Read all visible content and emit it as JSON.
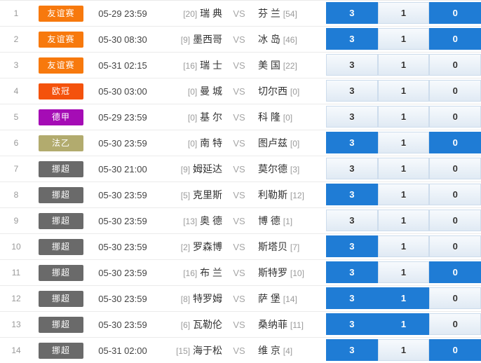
{
  "vs_label": "VS",
  "odds_options": [
    "3",
    "1",
    "0"
  ],
  "colors": {
    "selected_odd_bg": "#1f7cd5",
    "unselected_odd_bg": "#e8f0f8",
    "row_border": "#ebebeb"
  },
  "league_colors": {
    "友谊赛": "#f7790d",
    "欧冠": "#f4520c",
    "德甲": "#a50cb5",
    "法乙": "#b2ab6e",
    "挪超": "#6a6a6a"
  },
  "rows": [
    {
      "num": "1",
      "league": "友谊赛",
      "league_color": "#f7790d",
      "time": "05-29 23:59",
      "home_rank": "[20]",
      "home": "瑞 典",
      "away": "芬 兰",
      "away_rank": "[54]",
      "odds": [
        {
          "label": "3",
          "selected": true
        },
        {
          "label": "1",
          "selected": false
        },
        {
          "label": "0",
          "selected": true
        }
      ]
    },
    {
      "num": "2",
      "league": "友谊赛",
      "league_color": "#f7790d",
      "time": "05-30 08:30",
      "home_rank": "[9]",
      "home": "墨西哥",
      "away": "冰 岛",
      "away_rank": "[46]",
      "odds": [
        {
          "label": "3",
          "selected": true
        },
        {
          "label": "1",
          "selected": false
        },
        {
          "label": "0",
          "selected": true
        }
      ]
    },
    {
      "num": "3",
      "league": "友谊赛",
      "league_color": "#f7790d",
      "time": "05-31 02:15",
      "home_rank": "[16]",
      "home": "瑞 士",
      "away": "美 国",
      "away_rank": "[22]",
      "odds": [
        {
          "label": "3",
          "selected": false
        },
        {
          "label": "1",
          "selected": false
        },
        {
          "label": "0",
          "selected": false
        }
      ]
    },
    {
      "num": "4",
      "league": "欧冠",
      "league_color": "#f4520c",
      "time": "05-30 03:00",
      "home_rank": "[0]",
      "home": "曼 城",
      "away": "切尔西",
      "away_rank": "[0]",
      "odds": [
        {
          "label": "3",
          "selected": false
        },
        {
          "label": "1",
          "selected": false
        },
        {
          "label": "0",
          "selected": false
        }
      ]
    },
    {
      "num": "5",
      "league": "德甲",
      "league_color": "#a50cb5",
      "time": "05-29 23:59",
      "home_rank": "[0]",
      "home": "基 尔",
      "away": "科 隆",
      "away_rank": "[0]",
      "odds": [
        {
          "label": "3",
          "selected": false
        },
        {
          "label": "1",
          "selected": false
        },
        {
          "label": "0",
          "selected": false
        }
      ]
    },
    {
      "num": "6",
      "league": "法乙",
      "league_color": "#b2ab6e",
      "time": "05-30 23:59",
      "home_rank": "[0]",
      "home": "南 特",
      "away": "图卢兹",
      "away_rank": "[0]",
      "odds": [
        {
          "label": "3",
          "selected": true
        },
        {
          "label": "1",
          "selected": false
        },
        {
          "label": "0",
          "selected": true
        }
      ]
    },
    {
      "num": "7",
      "league": "挪超",
      "league_color": "#6a6a6a",
      "time": "05-30 21:00",
      "home_rank": "[9]",
      "home": "姆延达",
      "away": "莫尔德",
      "away_rank": "[3]",
      "odds": [
        {
          "label": "3",
          "selected": false
        },
        {
          "label": "1",
          "selected": false
        },
        {
          "label": "0",
          "selected": false
        }
      ]
    },
    {
      "num": "8",
      "league": "挪超",
      "league_color": "#6a6a6a",
      "time": "05-30 23:59",
      "home_rank": "[5]",
      "home": "克里斯",
      "away": "利勒斯",
      "away_rank": "[12]",
      "odds": [
        {
          "label": "3",
          "selected": true
        },
        {
          "label": "1",
          "selected": false
        },
        {
          "label": "0",
          "selected": false
        }
      ]
    },
    {
      "num": "9",
      "league": "挪超",
      "league_color": "#6a6a6a",
      "time": "05-30 23:59",
      "home_rank": "[13]",
      "home": "奥 德",
      "away": "博 德",
      "away_rank": "[1]",
      "odds": [
        {
          "label": "3",
          "selected": false
        },
        {
          "label": "1",
          "selected": false
        },
        {
          "label": "0",
          "selected": false
        }
      ]
    },
    {
      "num": "10",
      "league": "挪超",
      "league_color": "#6a6a6a",
      "time": "05-30 23:59",
      "home_rank": "[2]",
      "home": "罗森博",
      "away": "斯塔贝",
      "away_rank": "[7]",
      "odds": [
        {
          "label": "3",
          "selected": true
        },
        {
          "label": "1",
          "selected": false
        },
        {
          "label": "0",
          "selected": false
        }
      ]
    },
    {
      "num": "11",
      "league": "挪超",
      "league_color": "#6a6a6a",
      "time": "05-30 23:59",
      "home_rank": "[16]",
      "home": "布 兰",
      "away": "斯特罗",
      "away_rank": "[10]",
      "odds": [
        {
          "label": "3",
          "selected": true
        },
        {
          "label": "1",
          "selected": false
        },
        {
          "label": "0",
          "selected": true
        }
      ]
    },
    {
      "num": "12",
      "league": "挪超",
      "league_color": "#6a6a6a",
      "time": "05-30 23:59",
      "home_rank": "[8]",
      "home": "特罗姆",
      "away": "萨 堡",
      "away_rank": "[14]",
      "odds": [
        {
          "label": "3",
          "selected": true
        },
        {
          "label": "1",
          "selected": true
        },
        {
          "label": "0",
          "selected": false
        }
      ]
    },
    {
      "num": "13",
      "league": "挪超",
      "league_color": "#6a6a6a",
      "time": "05-30 23:59",
      "home_rank": "[6]",
      "home": "瓦勒伦",
      "away": "桑纳菲",
      "away_rank": "[11]",
      "odds": [
        {
          "label": "3",
          "selected": true
        },
        {
          "label": "1",
          "selected": true
        },
        {
          "label": "0",
          "selected": false
        }
      ]
    },
    {
      "num": "14",
      "league": "挪超",
      "league_color": "#6a6a6a",
      "time": "05-31 02:00",
      "home_rank": "[15]",
      "home": "海于松",
      "away": "维 京",
      "away_rank": "[4]",
      "odds": [
        {
          "label": "3",
          "selected": true
        },
        {
          "label": "1",
          "selected": false
        },
        {
          "label": "0",
          "selected": true
        }
      ]
    }
  ]
}
